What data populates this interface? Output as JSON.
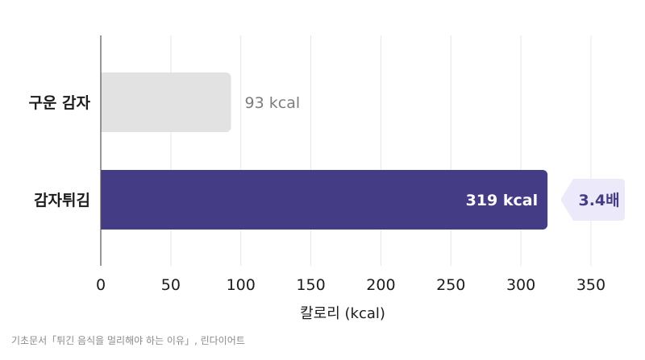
{
  "chart_data": {
    "type": "bar",
    "orientation": "horizontal",
    "categories": [
      "구운 감자",
      "감자튀김"
    ],
    "values": [
      93,
      319
    ],
    "value_labels": [
      "93 kcal",
      "319 kcal"
    ],
    "xlabel": "칼로리 (kcal)",
    "xlim": [
      0,
      375
    ],
    "xticks": [
      0,
      50,
      100,
      150,
      200,
      250,
      300,
      350
    ],
    "grid": "vertical",
    "colors": [
      "#e2e2e2",
      "#453c86"
    ],
    "label_colors": [
      "#7d7d7d",
      "#ffffff"
    ],
    "annotation": {
      "text": "3.4배",
      "category": "감자튀김",
      "fill": "#ece9fb",
      "text_color": "#453c86"
    }
  },
  "source": "기초문서「튀긴 음식을 멀리해야 하는 이유」, 린다이어트"
}
